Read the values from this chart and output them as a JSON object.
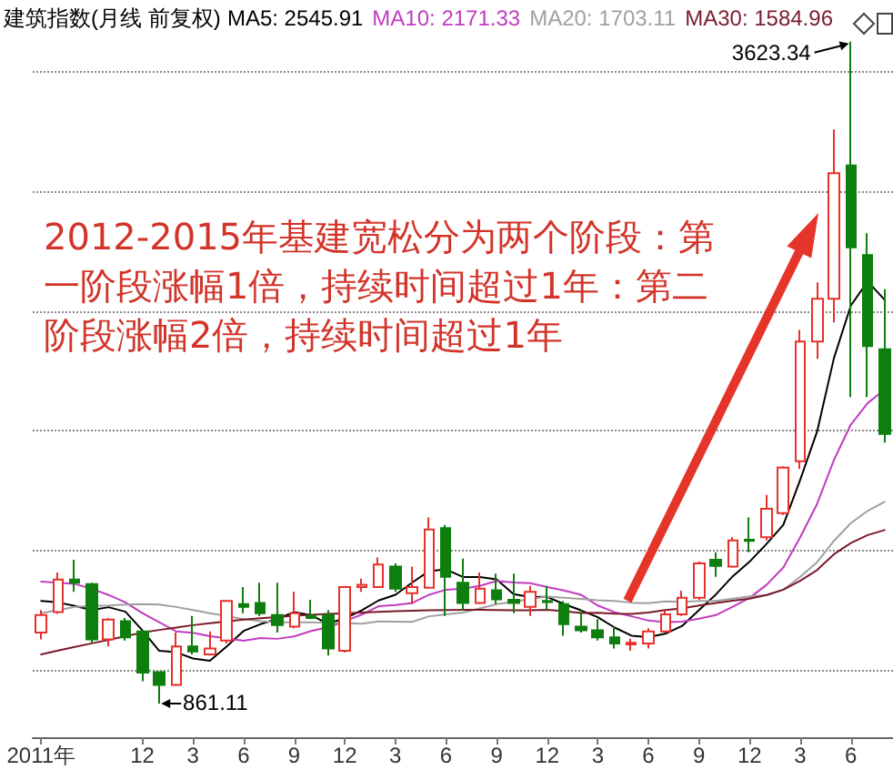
{
  "chart_data": {
    "type": "candlestick",
    "title": "建筑指数(月线 前复权)",
    "categories": [
      "2011年",
      null,
      null,
      null,
      null,
      null,
      "12",
      null,
      null,
      "3",
      null,
      null,
      "6",
      null,
      null,
      "9",
      null,
      null,
      "12",
      null,
      null,
      "3",
      null,
      null,
      "6",
      null,
      null,
      "9",
      null,
      null,
      "12",
      null,
      null,
      "3",
      null,
      null,
      "6",
      null,
      null,
      "9",
      null,
      null,
      "12",
      null,
      null,
      "3",
      null,
      null,
      "6",
      null,
      null
    ],
    "ohlc": [
      [
        1157,
        1251,
        1129,
        1230
      ],
      [
        1243,
        1408,
        1235,
        1378
      ],
      [
        1378,
        1461,
        1327,
        1365
      ],
      [
        1359,
        1365,
        1112,
        1129
      ],
      [
        1129,
        1218,
        1099,
        1211
      ],
      [
        1205,
        1218,
        1124,
        1137
      ],
      [
        1162,
        1167,
        954,
        990
      ],
      [
        992,
        995,
        861.11,
        939
      ],
      [
        939,
        1157,
        934,
        1099
      ],
      [
        1099,
        1226,
        1066,
        1078
      ],
      [
        1066,
        1162,
        1061,
        1091
      ],
      [
        1124,
        1292,
        1112,
        1289
      ],
      [
        1276,
        1347,
        1238,
        1264
      ],
      [
        1281,
        1365,
        1226,
        1238
      ],
      [
        1230,
        1365,
        1157,
        1188
      ],
      [
        1182,
        1327,
        1175,
        1238
      ],
      [
        1226,
        1294,
        1213,
        1218
      ],
      [
        1230,
        1251,
        1061,
        1091
      ],
      [
        1081,
        1352,
        1074,
        1347
      ],
      [
        1347,
        1382,
        1327,
        1357
      ],
      [
        1347,
        1471,
        1344,
        1441
      ],
      [
        1433,
        1446,
        1327,
        1340
      ],
      [
        1321,
        1433,
        1276,
        1347
      ],
      [
        1344,
        1638,
        1340,
        1587
      ],
      [
        1593,
        1606,
        1226,
        1390
      ],
      [
        1365,
        1466,
        1251,
        1281
      ],
      [
        1281,
        1408,
        1276,
        1340
      ],
      [
        1334,
        1403,
        1276,
        1296
      ],
      [
        1294,
        1403,
        1238,
        1281
      ],
      [
        1264,
        1352,
        1226,
        1327
      ],
      [
        1289,
        1352,
        1251,
        1284
      ],
      [
        1276,
        1289,
        1144,
        1192
      ],
      [
        1182,
        1251,
        1157,
        1167
      ],
      [
        1167,
        1213,
        1124,
        1137
      ],
      [
        1137,
        1182,
        1091,
        1112
      ],
      [
        1108,
        1131,
        1081,
        1114
      ],
      [
        1112,
        1175,
        1091,
        1162
      ],
      [
        1162,
        1251,
        1157,
        1233
      ],
      [
        1233,
        1332,
        1226,
        1302
      ],
      [
        1302,
        1454,
        1294,
        1446
      ],
      [
        1461,
        1492,
        1390,
        1435
      ],
      [
        1433,
        1555,
        1428,
        1542
      ],
      [
        1545,
        1638,
        1492,
        1540
      ],
      [
        1555,
        1732,
        1542,
        1674
      ],
      [
        1656,
        1851,
        1648,
        1846
      ],
      [
        1872,
        2420,
        1840,
        2372
      ],
      [
        2372,
        2619,
        2300,
        2550
      ],
      [
        2550,
        3257,
        2452,
        3075
      ],
      [
        3107,
        3623.34,
        2140,
        2765
      ],
      [
        2733,
        2824,
        2140,
        2353
      ],
      [
        2340,
        2590,
        1950,
        1986
      ]
    ],
    "colors": [
      "#e8302a",
      "#e8302a",
      "#0e7f0e",
      "#0e7f0e",
      "#e8302a",
      "#0e7f0e",
      "#0e7f0e",
      "#0e7f0e",
      "#e8302a",
      "#0e7f0e",
      "#e8302a",
      "#e8302a",
      "#0e7f0e",
      "#0e7f0e",
      "#0e7f0e",
      "#e8302a",
      "#0e7f0e",
      "#0e7f0e",
      "#e8302a",
      "#e8302a",
      "#e8302a",
      "#0e7f0e",
      "#e8302a",
      "#e8302a",
      "#0e7f0e",
      "#0e7f0e",
      "#e8302a",
      "#0e7f0e",
      "#0e7f0e",
      "#e8302a",
      "#0e7f0e",
      "#0e7f0e",
      "#0e7f0e",
      "#0e7f0e",
      "#0e7f0e",
      "#e8302a",
      "#e8302a",
      "#e8302a",
      "#e8302a",
      "#e8302a",
      "#0e7f0e",
      "#e8302a",
      "#0e7f0e",
      "#e8302a",
      "#e8302a",
      "#e8302a",
      "#e8302a",
      "#e8302a",
      "#0e7f0e",
      "#0e7f0e",
      "#0e7f0e"
    ],
    "value_labels": [
      null,
      null,
      null,
      null,
      null,
      null,
      null,
      "861.11",
      null,
      null,
      null,
      null,
      null,
      null,
      null,
      null,
      null,
      null,
      null,
      null,
      null,
      null,
      null,
      null,
      null,
      null,
      null,
      null,
      null,
      null,
      null,
      null,
      null,
      null,
      null,
      null,
      null,
      null,
      null,
      null,
      null,
      null,
      null,
      null,
      null,
      null,
      null,
      null,
      "3623.34",
      null,
      null
    ],
    "series": [
      {
        "type": "line",
        "name": "MA5: 2545.91",
        "color": "#000000",
        "values": [
          1289,
          1283,
          1268,
          1251,
          1263,
          1244,
          1166,
          1081,
          1075,
          1049,
          1039,
          1099,
          1164,
          1192,
          1214,
          1243,
          1229,
          1195,
          1216,
          1250,
          1291,
          1315,
          1366,
          1414,
          1421,
          1389,
          1389,
          1379,
          1318,
          1305,
          1306,
          1276,
          1250,
          1221,
          1178,
          1144,
          1138,
          1152,
          1185,
          1251,
          1316,
          1392,
          1453,
          1527,
          1607,
          1795,
          1996,
          2303,
          2522,
          2623,
          2545.91
        ]
      },
      {
        "type": "line",
        "name": "MA10: 2171.33",
        "color": "#c03cc0",
        "values": [
          1370,
          1365,
          1360,
          1340,
          1314,
          1283,
          1238,
          1200,
          1162,
          1156,
          1142,
          1133,
          1123,
          1134,
          1131,
          1141,
          1164,
          1179,
          1204,
          1232,
          1267,
          1272,
          1281,
          1315,
          1336,
          1340,
          1352,
          1373,
          1366,
          1363,
          1347,
          1333,
          1315,
          1270,
          1242,
          1225,
          1207,
          1201,
          1203,
          1215,
          1230,
          1265,
          1302,
          1356,
          1429,
          1555,
          1694,
          1878,
          2025,
          2115,
          2171.33
        ]
      },
      {
        "type": "line",
        "name": "MA20: 1703.11",
        "color": "#a0a0a0",
        "values": [
          1238,
          1251,
          1264,
          1268,
          1270,
          1274,
          1276,
          1274,
          1264,
          1251,
          1238,
          1226,
          1213,
          1205,
          1200,
          1200,
          1200,
          1198,
          1196,
          1194,
          1204,
          1203,
          1202,
          1225,
          1233,
          1241,
          1258,
          1276,
          1285,
          1298,
          1307,
          1302,
          1298,
          1292,
          1289,
          1282,
          1280,
          1287,
          1285,
          1289,
          1289,
          1299,
          1308,
          1313,
          1336,
          1390,
          1451,
          1540,
          1614,
          1665,
          1703.11
        ]
      },
      {
        "type": "line",
        "name": "MA30: 1584.96",
        "color": "#7a1a2a",
        "values": [
          1066,
          1082,
          1097,
          1112,
          1127,
          1142,
          1157,
          1168,
          1178,
          1188,
          1196,
          1204,
          1211,
          1217,
          1222,
          1227,
          1231,
          1235,
          1238,
          1241,
          1244,
          1246,
          1248,
          1250,
          1251,
          1252,
          1252,
          1251,
          1250,
          1250,
          1252,
          1246,
          1239,
          1240,
          1236,
          1235,
          1241,
          1251,
          1258,
          1270,
          1281,
          1290,
          1299,
          1314,
          1336,
          1373,
          1418,
          1484,
          1531,
          1564,
          1584.96
        ]
      }
    ],
    "yticks": [
      {
        "value": 1000,
        "label": null
      },
      {
        "value": 1500,
        "label": null
      },
      {
        "value": 2000,
        "label": null
      },
      {
        "value": 2500,
        "label": null
      },
      {
        "value": 3000,
        "label": null
      },
      {
        "value": 3500,
        "label": null
      }
    ],
    "tick_labels": "x",
    "grid": "y",
    "legend": "top right",
    "marker": "none",
    "annotations": [
      "2012-2015年基建宽松分为两个阶段：第一阶段涨幅1倍，持续时间超过1年：第二阶段涨幅2倍，持续时间超过1年"
    ]
  }
}
